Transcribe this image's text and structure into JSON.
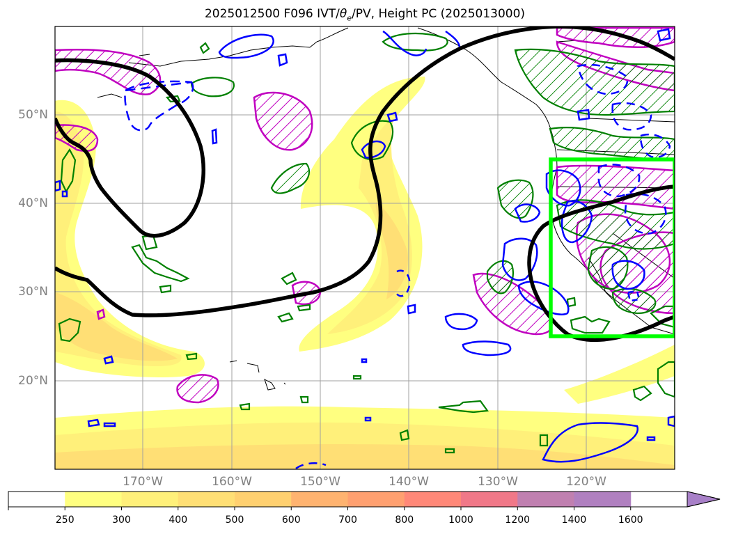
{
  "title": {
    "prefix": "2025012500 F096 IVT/",
    "theta": "θ",
    "theta_sub": "e",
    "suffix": "/PV, Height PC (2025013000)"
  },
  "map": {
    "projection": "PlateCarree",
    "extent_lon": [
      -180,
      -110
    ],
    "extent_lat": [
      10,
      60
    ],
    "gridlines": true,
    "lat_labels": [
      "20°N",
      "30°N",
      "40°N",
      "50°N"
    ],
    "lon_labels": [
      "170°W",
      "160°W",
      "150°W",
      "140°W",
      "130°W",
      "120°W"
    ],
    "highlight_box": {
      "lon": [
        -124,
        -110
      ],
      "lat": [
        25,
        45
      ],
      "color": "#00ff00"
    },
    "colors": {
      "height_contour": "#000000",
      "theta_e_contour": "#0000ff",
      "pv_contour": "#008000",
      "pc_hatch_contour": "#c000c0",
      "coastline": "#000000"
    }
  },
  "colorbar": {
    "levels": [
      "250",
      "300",
      "400",
      "500",
      "600",
      "700",
      "800",
      "1000",
      "1200",
      "1400",
      "1600"
    ],
    "colors": [
      "#ffffff",
      "#ffff80",
      "#fff07a",
      "#ffdf75",
      "#ffd070",
      "#ffb370",
      "#ffa070",
      "#ff8878",
      "#f07888",
      "#c080b0",
      "#b080c0",
      "#a880c8"
    ],
    "extend": "max"
  }
}
